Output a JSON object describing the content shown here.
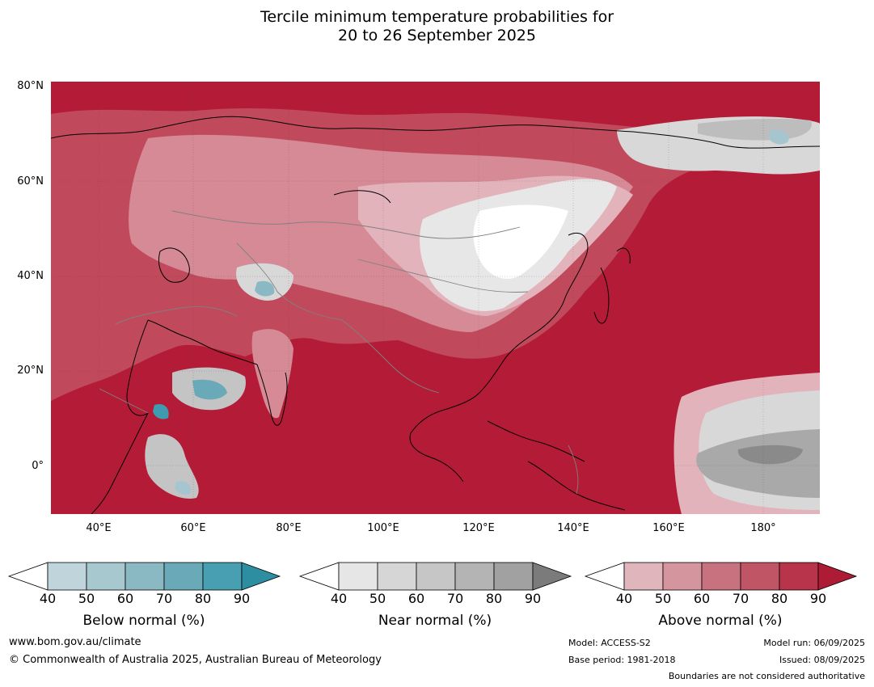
{
  "title": {
    "line1": "Tercile minimum temperature probabilities for",
    "line2": "20 to 26 September 2025"
  },
  "map": {
    "lat_labels": [
      "80°N",
      "60°N",
      "40°N",
      "20°N",
      "0°"
    ],
    "lon_labels": [
      "40°E",
      "60°E",
      "80°E",
      "100°E",
      "120°E",
      "140°E",
      "160°E",
      "180°"
    ],
    "colors": {
      "ocean_above": "#b41b37",
      "land_above": "#c04a5c",
      "light_above": "#d58a96",
      "lighter_above": "#e2b3bb",
      "near_light": "#e7e7e7",
      "near_mid": "#c4c4c4",
      "near_dark": "#8a8a8a",
      "below_light": "#a6c6cf",
      "below_dark": "#3e9bb0",
      "coast": "#000000",
      "border": "#808080"
    }
  },
  "legends": [
    {
      "title": "Below normal (%)",
      "ticks": [
        "40",
        "50",
        "60",
        "70",
        "80",
        "90"
      ],
      "colors": [
        "#ffffff",
        "#c0d4db",
        "#a7c8cf",
        "#8ab8c3",
        "#6aaab8",
        "#479fb1",
        "#2d8ea1"
      ]
    },
    {
      "title": "Near normal (%)",
      "ticks": [
        "40",
        "50",
        "60",
        "70",
        "80",
        "90"
      ],
      "colors": [
        "#ffffff",
        "#e6e6e6",
        "#d6d6d6",
        "#c6c6c6",
        "#b4b4b4",
        "#a1a1a1",
        "#7b7b7b"
      ]
    },
    {
      "title": "Above normal (%)",
      "ticks": [
        "40",
        "50",
        "60",
        "70",
        "80",
        "90"
      ],
      "colors": [
        "#ffffff",
        "#e0b6bc",
        "#d4959f",
        "#c8727f",
        "#bf5565",
        "#b8344a",
        "#ae1b35"
      ]
    }
  ],
  "footer": {
    "website": "www.bom.gov.au/climate",
    "copyright": "© Commonwealth of Australia 2025, Australian Bureau of Meteorology",
    "model": "Model: ACCESS-S2",
    "base_period": "Base period: 1981-2018",
    "model_run": "Model run: 06/09/2025",
    "issued": "Issued: 08/09/2025",
    "disclaimer": "Boundaries are not considered authoritative"
  }
}
